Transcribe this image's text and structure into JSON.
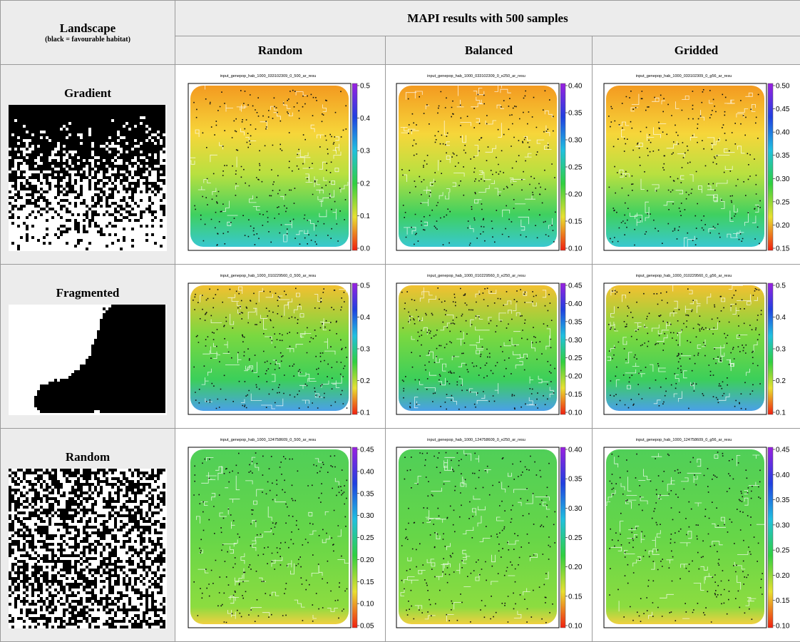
{
  "header": {
    "landscape_title": "Landscape",
    "landscape_note": "(black = favourable habitat)",
    "mapi_title": "MAPI results with 500 samples",
    "columns": [
      "Random",
      "Balanced",
      "Gridded"
    ]
  },
  "rows": [
    {
      "label": "Gradient",
      "plots": [
        {
          "title": "input_genepop_hab_1000_033102309_0_500_ar_resu",
          "colorbar": [
            "0.5",
            "0.4",
            "0.3",
            "0.2",
            "0.1",
            "0.0"
          ]
        },
        {
          "title": "input_genepop_hab_1000_033102309_0_e250_ar_resu",
          "colorbar": [
            "0.40",
            "0.35",
            "0.30",
            "0.25",
            "0.20",
            "0.15",
            "0.10"
          ]
        },
        {
          "title": "input_genepop_hab_1000_033102309_0_g56_ar_resu",
          "colorbar": [
            "0.50",
            "0.45",
            "0.40",
            "0.35",
            "0.30",
            "0.25",
            "0.20",
            "0.15"
          ]
        }
      ]
    },
    {
      "label": "Fragmented",
      "plots": [
        {
          "title": "input_genepop_hab_1000_010229560_0_500_ar_resu",
          "colorbar": [
            "0.5",
            "0.4",
            "0.3",
            "0.2",
            "0.1"
          ]
        },
        {
          "title": "input_genepop_hab_1000_010229560_0_e250_ar_resu",
          "colorbar": [
            "0.45",
            "0.40",
            "0.35",
            "0.30",
            "0.25",
            "0.20",
            "0.15",
            "0.10"
          ]
        },
        {
          "title": "input_genepop_hab_1000_010229560_0_g56_ar_resu",
          "colorbar": [
            "0.5",
            "0.4",
            "0.3",
            "0.2",
            "0.1"
          ]
        }
      ]
    },
    {
      "label": "Random",
      "plots": [
        {
          "title": "input_genepop_hab_1000_124758609_0_500_ar_resu",
          "colorbar": [
            "0.45",
            "0.40",
            "0.35",
            "0.30",
            "0.25",
            "0.20",
            "0.15",
            "0.10",
            "0.05"
          ]
        },
        {
          "title": "input_genepop_hab_1000_124758609_0_e250_ar_resu",
          "colorbar": [
            "0.40",
            "0.35",
            "0.30",
            "0.25",
            "0.20",
            "0.15",
            "0.10"
          ]
        },
        {
          "title": "input_genepop_hab_1000_124758609_0_g56_ar_resu",
          "colorbar": [
            "0.45",
            "0.40",
            "0.35",
            "0.30",
            "0.25",
            "0.20",
            "0.15",
            "0.10"
          ]
        }
      ]
    }
  ]
}
